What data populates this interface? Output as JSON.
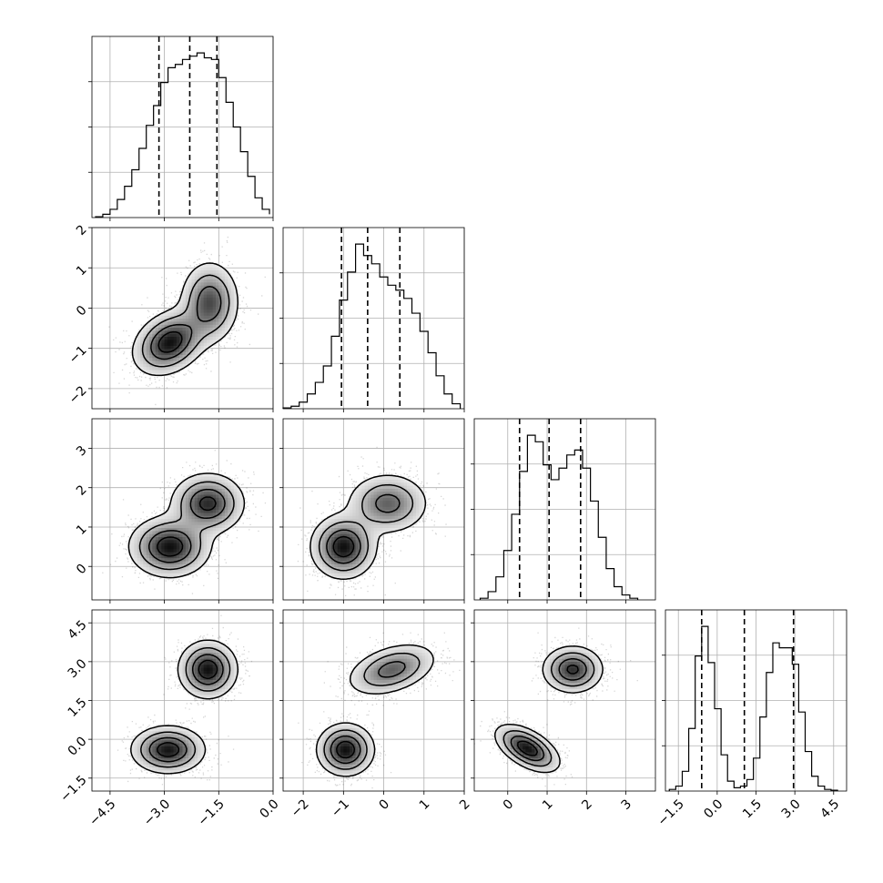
{
  "chart_data": {
    "type": "corner",
    "title": "",
    "grid": true,
    "parameters": [
      {
        "xlabel": "",
        "range": [
          -5.0,
          0.0
        ],
        "ticks": [
          -4.5,
          -3.0,
          -1.5,
          0.0
        ],
        "tick_labels": [
          "−4.5",
          "−3.0",
          "−1.5",
          "0.0"
        ]
      },
      {
        "xlabel": "",
        "range": [
          -2.5,
          2.0
        ],
        "ticks": [
          -2,
          -1,
          0,
          1,
          2
        ],
        "tick_labels": [
          "−2",
          "−1",
          "0",
          "1",
          "2"
        ]
      },
      {
        "xlabel": "",
        "range": [
          -0.85,
          3.75
        ],
        "ticks": [
          0,
          1,
          2,
          3
        ],
        "tick_labels": [
          "0",
          "1",
          "2",
          "3"
        ]
      },
      {
        "xlabel": "",
        "range": [
          -2.0,
          5.0
        ],
        "ticks": [
          -1.5,
          0.0,
          1.5,
          3.0,
          4.5
        ],
        "tick_labels": [
          "−1.5",
          "0.0",
          "1.5",
          "3.0",
          "4.5"
        ]
      }
    ],
    "histograms": [
      {
        "param": 0,
        "quantiles": [
          -3.15,
          -2.3,
          -1.55
        ],
        "bin_edges": [
          -4.9,
          -4.7,
          -4.5,
          -4.3,
          -4.1,
          -3.9,
          -3.7,
          -3.5,
          -3.3,
          -3.1,
          -2.9,
          -2.7,
          -2.5,
          -2.3,
          -2.1,
          -1.9,
          -1.7,
          -1.5,
          -1.3,
          -1.1,
          -0.9,
          -0.7,
          -0.5,
          -0.3,
          -0.1
        ],
        "counts": [
          0.5,
          2,
          5,
          11,
          19,
          29,
          42,
          56,
          68,
          82,
          91,
          93,
          96,
          98,
          100,
          97,
          96,
          85,
          70,
          55,
          40,
          25,
          12,
          5,
          2
        ]
      },
      {
        "param": 1,
        "quantiles": [
          -1.05,
          -0.4,
          0.4
        ],
        "bin_edges": [
          -2.5,
          -2.3,
          -2.1,
          -1.9,
          -1.7,
          -1.5,
          -1.3,
          -1.1,
          -0.9,
          -0.7,
          -0.5,
          -0.3,
          -0.1,
          0.1,
          0.3,
          0.5,
          0.7,
          0.9,
          1.1,
          1.3,
          1.5,
          1.7,
          1.9
        ],
        "counts": [
          0.5,
          1.5,
          4,
          9,
          16,
          26,
          44,
          66,
          83,
          100,
          93,
          88,
          80,
          75,
          72,
          67,
          58,
          47,
          34,
          20,
          9,
          3
        ]
      },
      {
        "param": 2,
        "quantiles": [
          0.3,
          1.05,
          1.85
        ],
        "bin_edges": [
          -0.7,
          -0.5,
          -0.3,
          -0.1,
          0.1,
          0.3,
          0.5,
          0.7,
          0.9,
          1.1,
          1.3,
          1.5,
          1.7,
          1.9,
          2.1,
          2.3,
          2.5,
          2.7,
          2.9,
          3.1,
          3.3
        ],
        "counts": [
          1,
          5,
          14,
          30,
          52,
          78,
          100,
          96,
          82,
          73,
          80,
          88,
          91,
          80,
          60,
          38,
          19,
          8,
          3,
          1
        ]
      },
      {
        "param": 3,
        "quantiles": [
          -0.6,
          1.05,
          2.95
        ],
        "bin_edges": [
          -1.85,
          -1.6,
          -1.35,
          -1.1,
          -0.85,
          -0.6,
          -0.35,
          -0.1,
          0.15,
          0.4,
          0.65,
          0.9,
          1.15,
          1.4,
          1.65,
          1.9,
          2.15,
          2.4,
          2.65,
          2.9,
          3.15,
          3.4,
          3.65,
          3.9,
          4.15,
          4.4,
          4.65
        ],
        "counts": [
          1,
          3,
          12,
          38,
          82,
          100,
          78,
          50,
          22,
          6,
          2,
          3,
          7,
          20,
          45,
          72,
          90,
          87,
          87,
          77,
          48,
          24,
          9,
          3,
          1,
          0.5
        ]
      }
    ],
    "pairs": [
      {
        "x_param": 0,
        "y_param": 1,
        "clusters": [
          {
            "cx": -2.85,
            "cy": -0.85,
            "sx": 0.5,
            "sy": 0.4,
            "rho": 0.3,
            "weight": 0.55
          },
          {
            "cx": -1.75,
            "cy": 0.15,
            "sx": 0.4,
            "sy": 0.5,
            "rho": 0.0,
            "weight": 0.45
          }
        ]
      },
      {
        "x_param": 0,
        "y_param": 2,
        "clusters": [
          {
            "cx": -2.85,
            "cy": 0.5,
            "sx": 0.55,
            "sy": 0.38,
            "rho": 0.0,
            "weight": 0.55
          },
          {
            "cx": -1.8,
            "cy": 1.6,
            "sx": 0.5,
            "sy": 0.38,
            "rho": 0.0,
            "weight": 0.45
          }
        ]
      },
      {
        "x_param": 1,
        "y_param": 2,
        "clusters": [
          {
            "cx": -1.0,
            "cy": 0.5,
            "sx": 0.4,
            "sy": 0.4,
            "rho": 0.0,
            "weight": 0.55
          },
          {
            "cx": 0.1,
            "cy": 1.6,
            "sx": 0.5,
            "sy": 0.38,
            "rho": 0.0,
            "weight": 0.45
          }
        ]
      },
      {
        "x_param": 0,
        "y_param": 3,
        "clusters": [
          {
            "cx": -2.9,
            "cy": -0.4,
            "sx": 0.5,
            "sy": 0.45,
            "rho": 0.0,
            "weight": 0.5
          },
          {
            "cx": -1.8,
            "cy": 2.7,
            "sx": 0.4,
            "sy": 0.55,
            "rho": 0.0,
            "weight": 0.5
          }
        ]
      },
      {
        "x_param": 1,
        "y_param": 3,
        "clusters": [
          {
            "cx": -0.95,
            "cy": -0.4,
            "sx": 0.35,
            "sy": 0.5,
            "rho": 0.0,
            "weight": 0.5
          },
          {
            "cx": 0.2,
            "cy": 2.7,
            "sx": 0.55,
            "sy": 0.5,
            "rho": 0.4,
            "weight": 0.5
          }
        ]
      },
      {
        "x_param": 2,
        "y_param": 3,
        "clusters": [
          {
            "cx": 0.5,
            "cy": -0.35,
            "sx": 0.4,
            "sy": 0.45,
            "rho": -0.55,
            "weight": 0.5
          },
          {
            "cx": 1.65,
            "cy": 2.7,
            "sx": 0.38,
            "sy": 0.45,
            "rho": 0.0,
            "weight": 0.5
          }
        ]
      }
    ]
  }
}
